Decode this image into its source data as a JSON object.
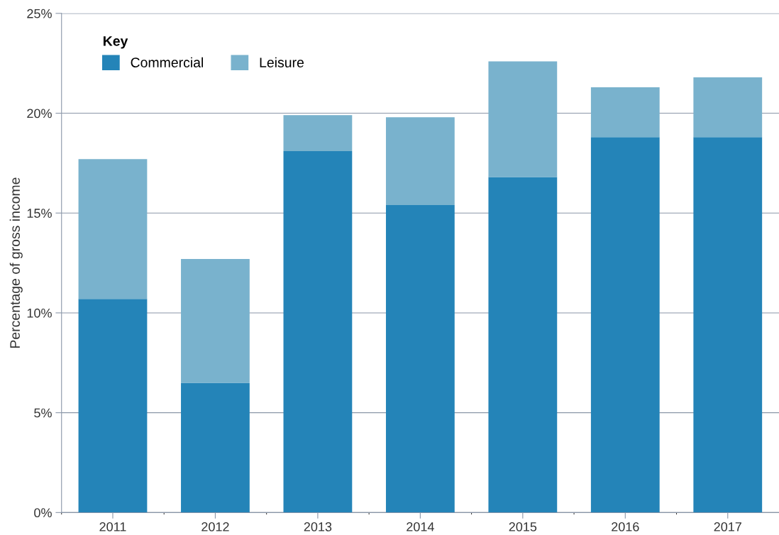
{
  "chart_data": {
    "type": "bar",
    "stacked": true,
    "ylabel": "Percentage of gross income",
    "legend_title": "Key",
    "legend": "top left",
    "grid": "y",
    "categories": [
      "2011",
      "2012",
      "2013",
      "2014",
      "2015",
      "2016",
      "2017"
    ],
    "series": [
      {
        "name": "Commercial",
        "color": "#2484b8",
        "values": [
          10.7,
          6.5,
          18.1,
          15.4,
          16.8,
          18.8,
          18.8
        ]
      },
      {
        "name": "Leisure",
        "color": "#79b2cd",
        "values": [
          7.0,
          6.2,
          1.8,
          4.4,
          5.8,
          2.5,
          3.0
        ]
      }
    ],
    "ylim": [
      0,
      25
    ],
    "yticks": [
      {
        "value": 0,
        "label": "0%"
      },
      {
        "value": 5,
        "label": "5%"
      },
      {
        "value": 10,
        "label": "10%"
      },
      {
        "value": 15,
        "label": "15%"
      },
      {
        "value": 20,
        "label": "20%"
      },
      {
        "value": 25,
        "label": "25%"
      }
    ]
  }
}
